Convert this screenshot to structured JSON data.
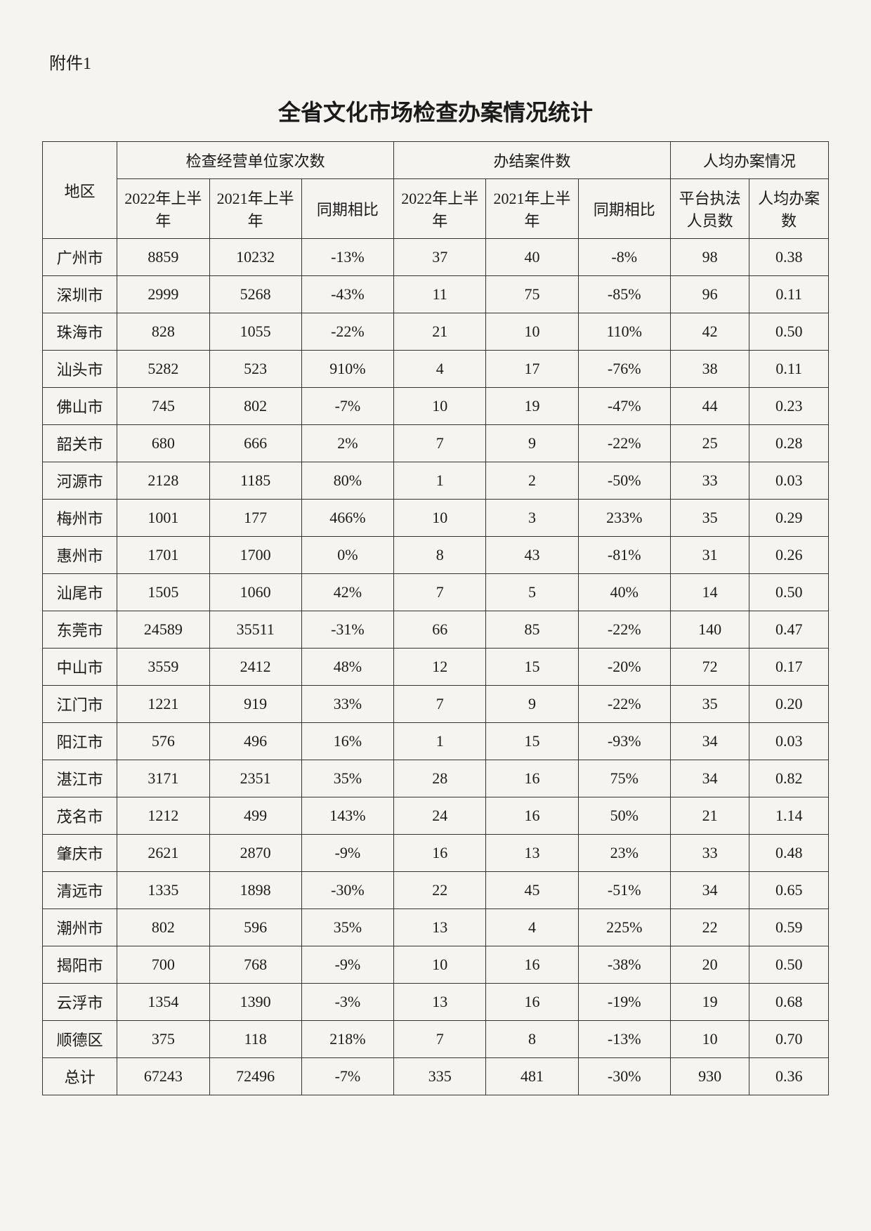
{
  "attachment_label": "附件1",
  "title": "全省文化市场检查办案情况统计",
  "header": {
    "region": "地区",
    "group1": "检查经营单位家次数",
    "group2": "办结案件数",
    "group3": "人均办案情况",
    "col_2022h1": "2022年上半年",
    "col_2021h1": "2021年上半年",
    "col_compare": "同期相比",
    "col_staff": "平台执法人员数",
    "col_avg": "人均办案数"
  },
  "rows": [
    {
      "region": "广州市",
      "c1": "8859",
      "c2": "10232",
      "c3": "-13%",
      "c4": "37",
      "c5": "40",
      "c6": "-8%",
      "c7": "98",
      "c8": "0.38"
    },
    {
      "region": "深圳市",
      "c1": "2999",
      "c2": "5268",
      "c3": "-43%",
      "c4": "11",
      "c5": "75",
      "c6": "-85%",
      "c7": "96",
      "c8": "0.11"
    },
    {
      "region": "珠海市",
      "c1": "828",
      "c2": "1055",
      "c3": "-22%",
      "c4": "21",
      "c5": "10",
      "c6": "110%",
      "c7": "42",
      "c8": "0.50"
    },
    {
      "region": "汕头市",
      "c1": "5282",
      "c2": "523",
      "c3": "910%",
      "c4": "4",
      "c5": "17",
      "c6": "-76%",
      "c7": "38",
      "c8": "0.11"
    },
    {
      "region": "佛山市",
      "c1": "745",
      "c2": "802",
      "c3": "-7%",
      "c4": "10",
      "c5": "19",
      "c6": "-47%",
      "c7": "44",
      "c8": "0.23"
    },
    {
      "region": "韶关市",
      "c1": "680",
      "c2": "666",
      "c3": "2%",
      "c4": "7",
      "c5": "9",
      "c6": "-22%",
      "c7": "25",
      "c8": "0.28"
    },
    {
      "region": "河源市",
      "c1": "2128",
      "c2": "1185",
      "c3": "80%",
      "c4": "1",
      "c5": "2",
      "c6": "-50%",
      "c7": "33",
      "c8": "0.03"
    },
    {
      "region": "梅州市",
      "c1": "1001",
      "c2": "177",
      "c3": "466%",
      "c4": "10",
      "c5": "3",
      "c6": "233%",
      "c7": "35",
      "c8": "0.29"
    },
    {
      "region": "惠州市",
      "c1": "1701",
      "c2": "1700",
      "c3": "0%",
      "c4": "8",
      "c5": "43",
      "c6": "-81%",
      "c7": "31",
      "c8": "0.26"
    },
    {
      "region": "汕尾市",
      "c1": "1505",
      "c2": "1060",
      "c3": "42%",
      "c4": "7",
      "c5": "5",
      "c6": "40%",
      "c7": "14",
      "c8": "0.50"
    },
    {
      "region": "东莞市",
      "c1": "24589",
      "c2": "35511",
      "c3": "-31%",
      "c4": "66",
      "c5": "85",
      "c6": "-22%",
      "c7": "140",
      "c8": "0.47"
    },
    {
      "region": "中山市",
      "c1": "3559",
      "c2": "2412",
      "c3": "48%",
      "c4": "12",
      "c5": "15",
      "c6": "-20%",
      "c7": "72",
      "c8": "0.17"
    },
    {
      "region": "江门市",
      "c1": "1221",
      "c2": "919",
      "c3": "33%",
      "c4": "7",
      "c5": "9",
      "c6": "-22%",
      "c7": "35",
      "c8": "0.20"
    },
    {
      "region": "阳江市",
      "c1": "576",
      "c2": "496",
      "c3": "16%",
      "c4": "1",
      "c5": "15",
      "c6": "-93%",
      "c7": "34",
      "c8": "0.03"
    },
    {
      "region": "湛江市",
      "c1": "3171",
      "c2": "2351",
      "c3": "35%",
      "c4": "28",
      "c5": "16",
      "c6": "75%",
      "c7": "34",
      "c8": "0.82"
    },
    {
      "region": "茂名市",
      "c1": "1212",
      "c2": "499",
      "c3": "143%",
      "c4": "24",
      "c5": "16",
      "c6": "50%",
      "c7": "21",
      "c8": "1.14"
    },
    {
      "region": "肇庆市",
      "c1": "2621",
      "c2": "2870",
      "c3": "-9%",
      "c4": "16",
      "c5": "13",
      "c6": "23%",
      "c7": "33",
      "c8": "0.48"
    },
    {
      "region": "清远市",
      "c1": "1335",
      "c2": "1898",
      "c3": "-30%",
      "c4": "22",
      "c5": "45",
      "c6": "-51%",
      "c7": "34",
      "c8": "0.65"
    },
    {
      "region": "潮州市",
      "c1": "802",
      "c2": "596",
      "c3": "35%",
      "c4": "13",
      "c5": "4",
      "c6": "225%",
      "c7": "22",
      "c8": "0.59"
    },
    {
      "region": "揭阳市",
      "c1": "700",
      "c2": "768",
      "c3": "-9%",
      "c4": "10",
      "c5": "16",
      "c6": "-38%",
      "c7": "20",
      "c8": "0.50"
    },
    {
      "region": "云浮市",
      "c1": "1354",
      "c2": "1390",
      "c3": "-3%",
      "c4": "13",
      "c5": "16",
      "c6": "-19%",
      "c7": "19",
      "c8": "0.68"
    },
    {
      "region": "顺德区",
      "c1": "375",
      "c2": "118",
      "c3": "218%",
      "c4": "7",
      "c5": "8",
      "c6": "-13%",
      "c7": "10",
      "c8": "0.70"
    },
    {
      "region": "总计",
      "c1": "67243",
      "c2": "72496",
      "c3": "-7%",
      "c4": "335",
      "c5": "481",
      "c6": "-30%",
      "c7": "930",
      "c8": "0.36"
    }
  ]
}
